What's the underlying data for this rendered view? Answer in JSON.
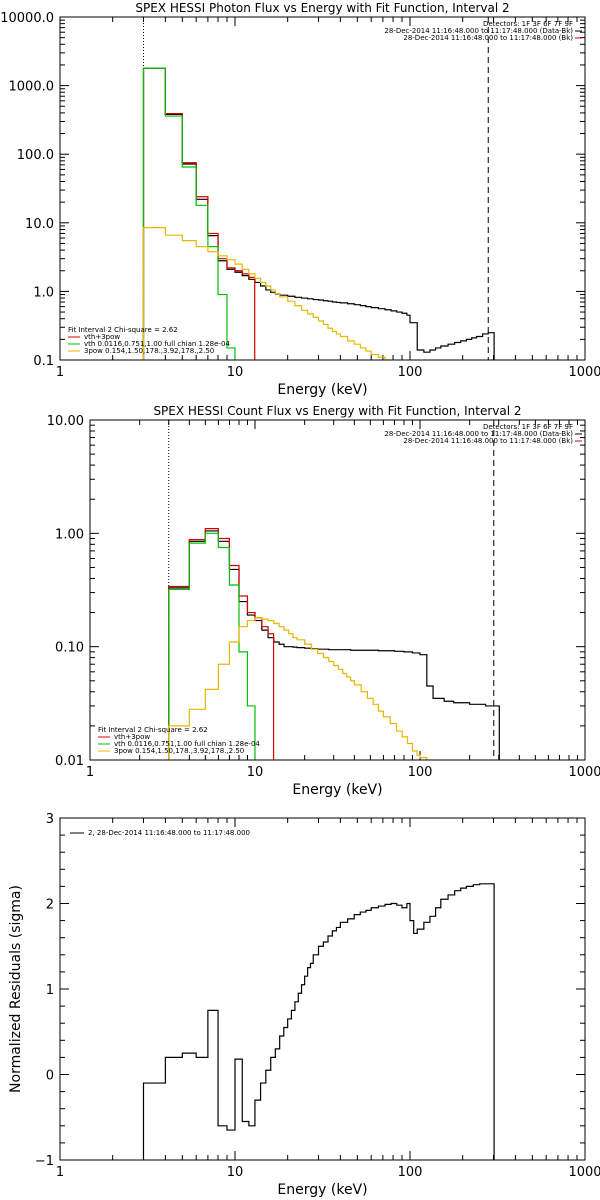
{
  "figure_titles": [
    "SPEX HESSI Photon Flux vs Energy with Fit Function, Interval 2",
    "SPEX HESSI Count Flux vs Energy with Fit Function, Interval 2",
    ""
  ],
  "chart_data": [
    {
      "type": "line",
      "title": "SPEX HESSI Photon Flux vs Energy with Fit Function, Interval 2",
      "xlabel": "Energy (keV)",
      "ylabel": "",
      "xscale": "log",
      "yscale": "log",
      "xlim": [
        1,
        1000
      ],
      "ylim": [
        0.1,
        10000
      ],
      "xticks": [
        1,
        10,
        100,
        1000
      ],
      "xticklabels": [
        "1",
        "10",
        "100",
        "1000"
      ],
      "yticks": [
        0.1,
        1,
        10,
        100,
        1000,
        10000
      ],
      "yticklabels": [
        "0.1",
        "1.0",
        "10.0",
        "100.0",
        "1000.0",
        "10000.0"
      ],
      "vlines": [
        {
          "x": 3,
          "style": "dotted"
        },
        {
          "x": 280,
          "style": "dashed"
        }
      ],
      "info_text": [
        "Detectors: 1F 3F 6F 7F 9F",
        "28-Dec-2014 11:16:48.000 to 11:17:48.000 (Data-Bk)",
        "28-Dec-2014 11:16:48.000 to 11:17:48.000 (Bk)"
      ],
      "fit_text": "Fit Interval 2   Chi-square = 2.62",
      "series": [
        {
          "name": "",
          "color": "#000000",
          "x": [
            3,
            4,
            5,
            6,
            7,
            8,
            9,
            10,
            11,
            12,
            13,
            14,
            15,
            16,
            17,
            18,
            20,
            22,
            24,
            26,
            28,
            30,
            32,
            34,
            36,
            38,
            40,
            44,
            48,
            52,
            56,
            60,
            66,
            72,
            78,
            84,
            90,
            96,
            100,
            110,
            120,
            130,
            140,
            150,
            165,
            180,
            195,
            210,
            225,
            240,
            260,
            280
          ],
          "y": [
            1800,
            380,
            72,
            22,
            6.5,
            2.8,
            2.1,
            1.9,
            1.7,
            1.5,
            1.35,
            1.2,
            1.05,
            0.97,
            0.92,
            0.88,
            0.85,
            0.82,
            0.8,
            0.78,
            0.76,
            0.75,
            0.73,
            0.72,
            0.7,
            0.69,
            0.68,
            0.66,
            0.64,
            0.62,
            0.6,
            0.58,
            0.56,
            0.54,
            0.52,
            0.5,
            0.48,
            0.45,
            0.35,
            0.14,
            0.13,
            0.14,
            0.15,
            0.16,
            0.17,
            0.18,
            0.19,
            0.2,
            0.21,
            0.22,
            0.24,
            0.25
          ]
        },
        {
          "name": "vth+3pow",
          "color": "#d40000",
          "x": [
            3,
            4,
            5,
            6,
            7,
            8,
            9,
            10,
            11,
            12
          ],
          "y": [
            1800,
            390,
            75,
            24,
            7,
            3,
            2.2,
            2.0,
            1.8,
            1.6
          ]
        },
        {
          "name": "vth 0.0116,0.751,1.00  full chian 1.28e-04",
          "color": "#00c000",
          "x": [
            3,
            4,
            5,
            6,
            7,
            8,
            9,
            10
          ],
          "y": [
            1800,
            360,
            65,
            18,
            4.5,
            0.9,
            0.15,
            0.05
          ]
        },
        {
          "name": "3pow 0.154,1.50,178.,3.92,178.,2.50",
          "color": "#e6b800",
          "x": [
            3,
            4,
            5,
            6,
            7,
            8,
            9,
            10,
            11,
            12,
            13,
            14,
            15,
            16,
            17,
            18,
            20,
            22,
            24,
            26,
            28,
            30,
            32,
            34,
            36,
            38,
            40,
            44,
            48,
            52,
            56,
            60,
            66,
            72,
            78
          ],
          "y": [
            8.5,
            6.6,
            5.5,
            4.5,
            3.8,
            3.3,
            2.9,
            2.5,
            2.1,
            1.8,
            1.55,
            1.35,
            1.2,
            1.05,
            0.93,
            0.83,
            0.72,
            0.62,
            0.53,
            0.47,
            0.42,
            0.37,
            0.33,
            0.29,
            0.26,
            0.24,
            0.22,
            0.19,
            0.17,
            0.15,
            0.135,
            0.12,
            0.11,
            0.1,
            0.095
          ]
        }
      ]
    },
    {
      "type": "line",
      "title": "SPEX HESSI Count Flux vs Energy with Fit Function, Interval 2",
      "xlabel": "Energy (keV)",
      "ylabel": "",
      "xscale": "log",
      "yscale": "log",
      "xlim": [
        1,
        1000
      ],
      "ylim": [
        0.01,
        10
      ],
      "xticks": [
        1,
        10,
        100,
        1000
      ],
      "xticklabels": [
        "1",
        "10",
        "100",
        "1000"
      ],
      "yticks": [
        0.01,
        0.1,
        1,
        10
      ],
      "yticklabels": [
        "0.01",
        "0.10",
        "1.00",
        "10.00"
      ],
      "vlines": [
        {
          "x": 3,
          "style": "dotted"
        },
        {
          "x": 280,
          "style": "dashed"
        }
      ],
      "info_text": [
        "Detectors: 1F 3F 6F 7F 9F",
        "28-Dec-2014 11:16:48.000 to 11:17:48.000 (Data-Bk)",
        "28-Dec-2014 11:16:48.000 to 11:17:48.000 (Bk)"
      ],
      "fit_text": "Fit Interval 2   Chi-square = 2.62",
      "series": [
        {
          "name": "",
          "color": "#000000",
          "x": [
            3,
            4,
            5,
            6,
            7,
            8,
            9,
            10,
            11,
            12,
            13,
            14,
            15,
            16,
            17,
            18,
            20,
            22,
            24,
            26,
            28,
            30,
            34,
            38,
            42,
            46,
            50,
            56,
            62,
            70,
            80,
            90,
            100,
            110,
            120,
            140,
            160,
            180,
            200,
            220,
            250,
            280
          ],
          "y": [
            0.33,
            0.85,
            1.05,
            0.85,
            0.48,
            0.25,
            0.19,
            0.17,
            0.14,
            0.12,
            0.11,
            0.105,
            0.1,
            0.1,
            0.099,
            0.098,
            0.097,
            0.096,
            0.095,
            0.095,
            0.094,
            0.094,
            0.094,
            0.093,
            0.093,
            0.093,
            0.093,
            0.092,
            0.092,
            0.091,
            0.09,
            0.088,
            0.085,
            0.045,
            0.035,
            0.033,
            0.032,
            0.032,
            0.031,
            0.031,
            0.03,
            0.03
          ]
        },
        {
          "name": "vth+3pow",
          "color": "#d40000",
          "x": [
            3,
            4,
            5,
            6,
            7,
            8,
            9,
            10,
            11,
            12
          ],
          "y": [
            0.34,
            0.88,
            1.1,
            0.9,
            0.52,
            0.28,
            0.2,
            0.18,
            0.15,
            0.13
          ]
        },
        {
          "name": "vth 0.0116,0.751,1.00  full chian 1.28e-04",
          "color": "#00c000",
          "x": [
            3,
            4,
            5,
            6,
            7,
            8,
            9,
            10
          ],
          "y": [
            0.32,
            0.82,
            1.0,
            0.75,
            0.35,
            0.09,
            0.03,
            0.005
          ]
        },
        {
          "name": "3pow 0.154,1.50,178.,3.92,178.,2.50",
          "color": "#e6b800",
          "x": [
            3,
            4,
            5,
            6,
            7,
            8,
            9,
            10,
            11,
            12,
            13,
            14,
            15,
            16,
            17,
            18,
            20,
            22,
            24,
            26,
            28,
            30,
            32,
            34,
            36,
            38,
            40,
            44,
            48,
            52,
            56,
            60,
            66,
            72,
            78,
            84,
            90,
            96,
            100,
            110,
            120
          ],
          "y": [
            0.02,
            0.028,
            0.042,
            0.07,
            0.11,
            0.15,
            0.17,
            0.18,
            0.175,
            0.17,
            0.16,
            0.15,
            0.14,
            0.13,
            0.12,
            0.115,
            0.105,
            0.095,
            0.087,
            0.08,
            0.074,
            0.068,
            0.063,
            0.058,
            0.054,
            0.05,
            0.046,
            0.04,
            0.035,
            0.031,
            0.027,
            0.024,
            0.021,
            0.018,
            0.016,
            0.014,
            0.012,
            0.011,
            0.0105,
            0.01,
            0.009
          ]
        }
      ]
    },
    {
      "type": "line",
      "title": "",
      "xlabel": "Energy (keV)",
      "ylabel": "Normalized Residuals (sigma)",
      "xscale": "log",
      "yscale": "linear",
      "xlim": [
        1,
        1000
      ],
      "ylim": [
        -1,
        3
      ],
      "xticks": [
        1,
        10,
        100,
        1000
      ],
      "xticklabels": [
        "1",
        "10",
        "100",
        "1000"
      ],
      "yticks": [
        -1,
        0,
        1,
        2,
        3
      ],
      "yticklabels": [
        "−1",
        "0",
        "1",
        "2",
        "3"
      ],
      "legend_text": "2, 28-Dec-2014 11:16:48.000 to 11:17:48.000",
      "series": [
        {
          "name": "2, 28-Dec-2014 11:16:48.000 to 11:17:48.000",
          "color": "#000000",
          "x": [
            3,
            4,
            5,
            6,
            7,
            8,
            9,
            10,
            11,
            12,
            13,
            14,
            15,
            16,
            17,
            18,
            19,
            20,
            21,
            22,
            23,
            24,
            25,
            26,
            27,
            28,
            30,
            32,
            34,
            36,
            38,
            40,
            44,
            48,
            52,
            56,
            60,
            66,
            72,
            78,
            84,
            90,
            96,
            100,
            105,
            110,
            120,
            130,
            140,
            150,
            165,
            180,
            195,
            210,
            230,
            250,
            280
          ],
          "y": [
            -0.1,
            0.2,
            0.25,
            0.2,
            0.75,
            -0.6,
            -0.65,
            0.18,
            -0.55,
            -0.6,
            -0.3,
            -0.1,
            0.05,
            0.2,
            0.3,
            0.45,
            0.55,
            0.65,
            0.75,
            0.85,
            0.95,
            1.05,
            1.15,
            1.25,
            1.3,
            1.4,
            1.5,
            1.55,
            1.62,
            1.68,
            1.72,
            1.78,
            1.82,
            1.87,
            1.9,
            1.92,
            1.95,
            1.97,
            1.99,
            2.0,
            1.98,
            1.95,
            2.0,
            1.8,
            1.65,
            1.7,
            1.78,
            1.85,
            1.95,
            2.05,
            2.1,
            2.15,
            2.18,
            2.2,
            2.22,
            2.23,
            2.23
          ]
        }
      ]
    }
  ]
}
